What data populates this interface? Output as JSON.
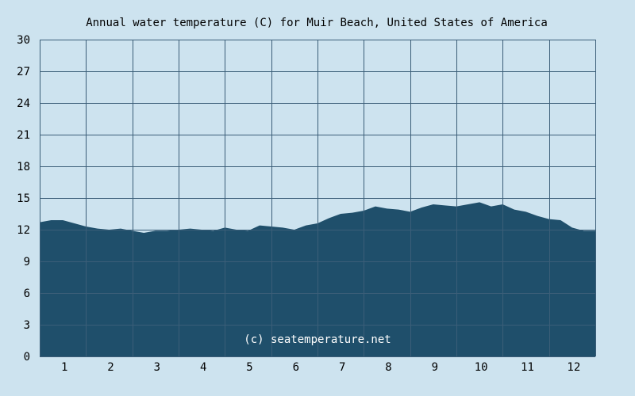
{
  "colors": {
    "background": "#cde3ef",
    "plot_background": "#cde3ef",
    "fill": "#1f4f6b",
    "grid": "#3b5e78",
    "text": "#000000",
    "watermark_text": "#ffffff"
  },
  "watermark": "(c) seatemperature.net",
  "chart_data": {
    "type": "area",
    "title": "Annual water temperature (C) for Muir Beach, United States of America",
    "xlabel": "",
    "ylabel": "",
    "xlim": [
      0.5,
      12.5
    ],
    "ylim": [
      0,
      30
    ],
    "yticks": [
      0,
      3,
      6,
      9,
      12,
      15,
      18,
      21,
      24,
      27,
      30
    ],
    "ytick_labels": [
      "0",
      "3",
      "6",
      "9",
      "12",
      "15",
      "18",
      "21",
      "24",
      "27",
      "30"
    ],
    "xticks": [
      1,
      2,
      3,
      4,
      5,
      6,
      7,
      8,
      9,
      10,
      11,
      12
    ],
    "xtick_labels": [
      "1",
      "2",
      "3",
      "4",
      "5",
      "6",
      "7",
      "8",
      "9",
      "10",
      "11",
      "12"
    ],
    "grid": true,
    "legend": "none",
    "x": [
      0.5,
      0.75,
      1.0,
      1.25,
      1.5,
      1.75,
      2.0,
      2.25,
      2.5,
      2.75,
      3.0,
      3.25,
      3.5,
      3.75,
      4.0,
      4.25,
      4.5,
      4.75,
      5.0,
      5.25,
      5.5,
      5.75,
      6.0,
      6.25,
      6.5,
      6.75,
      7.0,
      7.25,
      7.5,
      7.75,
      8.0,
      8.25,
      8.5,
      8.75,
      9.0,
      9.25,
      9.5,
      9.75,
      10.0,
      10.25,
      10.5,
      10.75,
      11.0,
      11.25,
      11.5,
      11.75,
      12.0,
      12.25,
      12.5
    ],
    "y": [
      12.7,
      12.9,
      12.9,
      12.6,
      12.3,
      12.1,
      12.0,
      12.1,
      11.9,
      11.7,
      11.9,
      11.9,
      12.0,
      12.1,
      12.0,
      11.9,
      12.2,
      12.0,
      11.9,
      12.4,
      12.3,
      12.2,
      12.0,
      12.4,
      12.6,
      13.1,
      13.5,
      13.6,
      13.8,
      14.2,
      14.0,
      13.9,
      13.7,
      14.1,
      14.4,
      14.3,
      14.2,
      14.4,
      14.6,
      14.2,
      14.4,
      13.9,
      13.7,
      13.3,
      13.0,
      12.9,
      12.2,
      11.9,
      11.9
    ]
  }
}
